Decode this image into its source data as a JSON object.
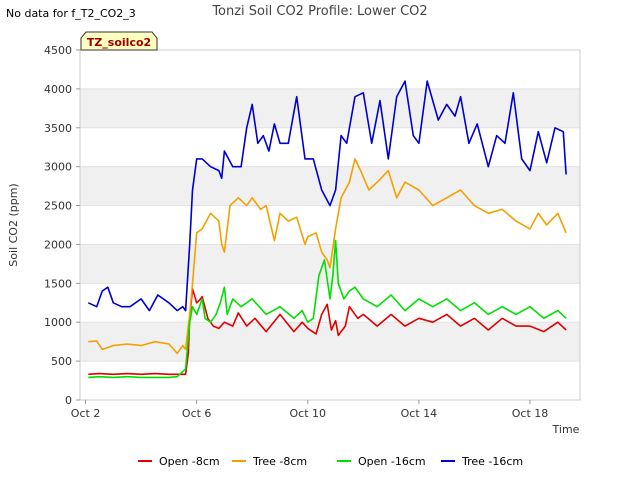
{
  "chart_data": {
    "type": "line",
    "title": "Tonzi Soil CO2 Profile: Lower CO2",
    "no_data_note": "No data for f_T2_CO2_3",
    "site_badge": "TZ_soilco2",
    "xlabel": "Time",
    "ylabel": "Soil CO2 (ppm)",
    "xlim": [
      1.8,
      19.8
    ],
    "ylim": [
      0,
      4500
    ],
    "yticks": [
      0,
      500,
      1000,
      1500,
      2000,
      2500,
      3000,
      3500,
      4000,
      4500
    ],
    "xticks": [
      {
        "value": 2,
        "label": "Oct 2"
      },
      {
        "value": 6,
        "label": "Oct 6"
      },
      {
        "value": 10,
        "label": "Oct 10"
      },
      {
        "value": 14,
        "label": "Oct 14"
      },
      {
        "value": 18,
        "label": "Oct 18"
      }
    ],
    "grid": true,
    "legend_position": "bottom",
    "series": [
      {
        "name": "Open -8cm",
        "color": "#e00000",
        "x": [
          2.1,
          2.5,
          3.0,
          3.5,
          4.0,
          4.5,
          5.0,
          5.3,
          5.6,
          5.7,
          5.75,
          5.85,
          6.0,
          6.1,
          6.2,
          6.4,
          6.6,
          6.8,
          7.0,
          7.3,
          7.5,
          7.8,
          8.1,
          8.5,
          9.0,
          9.5,
          9.8,
          10.0,
          10.3,
          10.5,
          10.7,
          10.85,
          11.0,
          11.1,
          11.2,
          11.35,
          11.5,
          11.8,
          12.0,
          12.5,
          13.0,
          13.5,
          14.0,
          14.5,
          15.0,
          15.5,
          16.0,
          16.5,
          17.0,
          17.5,
          18.0,
          18.5,
          19.0,
          19.3
        ],
        "y": [
          330,
          340,
          330,
          340,
          330,
          340,
          330,
          330,
          330,
          600,
          1050,
          1430,
          1250,
          1280,
          1330,
          1050,
          950,
          920,
          1000,
          950,
          1120,
          950,
          1050,
          880,
          1100,
          880,
          1000,
          920,
          850,
          1100,
          1230,
          900,
          1020,
          830,
          880,
          950,
          1200,
          1050,
          1100,
          950,
          1100,
          950,
          1050,
          1000,
          1100,
          950,
          1050,
          900,
          1050,
          950,
          950,
          880,
          1000,
          900
        ]
      },
      {
        "name": "Tree -8cm",
        "color": "#f5a000",
        "x": [
          2.1,
          2.4,
          2.6,
          3.0,
          3.5,
          4.0,
          4.5,
          5.0,
          5.3,
          5.5,
          5.6,
          5.75,
          5.85,
          6.0,
          6.2,
          6.5,
          6.8,
          6.9,
          7.0,
          7.2,
          7.5,
          7.8,
          8.0,
          8.3,
          8.5,
          8.8,
          9.0,
          9.3,
          9.6,
          9.9,
          10.0,
          10.3,
          10.5,
          10.7,
          10.8,
          11.0,
          11.2,
          11.5,
          11.7,
          11.9,
          12.2,
          12.5,
          12.9,
          13.2,
          13.5,
          14.0,
          14.5,
          15.0,
          15.5,
          16.0,
          16.5,
          17.0,
          17.5,
          18.0,
          18.3,
          18.6,
          19.0,
          19.3
        ],
        "y": [
          750,
          760,
          650,
          700,
          720,
          700,
          750,
          720,
          600,
          700,
          650,
          1100,
          1500,
          2150,
          2200,
          2400,
          2300,
          2000,
          1900,
          2500,
          2600,
          2500,
          2600,
          2450,
          2500,
          2050,
          2400,
          2300,
          2350,
          2000,
          2100,
          2150,
          1900,
          1800,
          1700,
          2200,
          2600,
          2800,
          3100,
          2950,
          2700,
          2800,
          2950,
          2600,
          2800,
          2700,
          2500,
          2600,
          2700,
          2500,
          2400,
          2450,
          2300,
          2200,
          2400,
          2250,
          2400,
          2150
        ]
      },
      {
        "name": "Open -16cm",
        "color": "#00e000",
        "x": [
          2.1,
          2.5,
          3.0,
          3.5,
          4.0,
          4.5,
          5.0,
          5.3,
          5.6,
          5.75,
          5.85,
          6.0,
          6.2,
          6.3,
          6.5,
          6.7,
          6.85,
          7.0,
          7.1,
          7.3,
          7.6,
          8.0,
          8.5,
          9.0,
          9.5,
          9.8,
          10.0,
          10.2,
          10.4,
          10.6,
          10.8,
          10.9,
          11.0,
          11.1,
          11.3,
          11.5,
          11.7,
          12.0,
          12.5,
          13.0,
          13.5,
          14.0,
          14.5,
          15.0,
          15.5,
          16.0,
          16.5,
          17.0,
          17.5,
          18.0,
          18.5,
          19.0,
          19.3
        ],
        "y": [
          290,
          300,
          290,
          300,
          290,
          290,
          290,
          300,
          400,
          1000,
          1200,
          1100,
          1300,
          1050,
          1000,
          1100,
          1250,
          1450,
          1100,
          1300,
          1200,
          1300,
          1100,
          1200,
          1050,
          1150,
          1000,
          1050,
          1600,
          1800,
          1300,
          1600,
          2050,
          1500,
          1300,
          1400,
          1450,
          1300,
          1200,
          1350,
          1150,
          1300,
          1200,
          1300,
          1150,
          1250,
          1100,
          1200,
          1100,
          1200,
          1050,
          1150,
          1050
        ]
      },
      {
        "name": "Tree -16cm",
        "color": "#0000d0",
        "x": [
          2.1,
          2.4,
          2.6,
          2.8,
          3.0,
          3.3,
          3.6,
          4.0,
          4.3,
          4.6,
          5.0,
          5.3,
          5.5,
          5.6,
          5.75,
          5.85,
          6.0,
          6.2,
          6.5,
          6.8,
          6.9,
          7.0,
          7.3,
          7.6,
          7.8,
          8.0,
          8.2,
          8.4,
          8.6,
          8.8,
          9.0,
          9.3,
          9.6,
          9.9,
          10.2,
          10.5,
          10.8,
          11.0,
          11.2,
          11.4,
          11.7,
          12.0,
          12.3,
          12.6,
          12.9,
          13.2,
          13.5,
          13.8,
          14.0,
          14.3,
          14.7,
          15.0,
          15.3,
          15.5,
          15.8,
          16.1,
          16.5,
          16.8,
          17.1,
          17.4,
          17.7,
          18.0,
          18.3,
          18.6,
          18.9,
          19.2,
          19.3
        ],
        "y": [
          1250,
          1200,
          1400,
          1450,
          1250,
          1200,
          1200,
          1300,
          1150,
          1350,
          1250,
          1150,
          1200,
          1150,
          2000,
          2700,
          3100,
          3100,
          3000,
          2950,
          2850,
          3200,
          3000,
          3000,
          3500,
          3800,
          3300,
          3400,
          3200,
          3550,
          3300,
          3300,
          3900,
          3100,
          3100,
          2700,
          2500,
          2700,
          3400,
          3300,
          3900,
          3950,
          3300,
          3850,
          3100,
          3900,
          4100,
          3400,
          3300,
          4100,
          3600,
          3800,
          3650,
          3900,
          3300,
          3550,
          3000,
          3400,
          3300,
          3950,
          3100,
          2950,
          3450,
          3050,
          3500,
          3450,
          2900
        ]
      }
    ]
  }
}
